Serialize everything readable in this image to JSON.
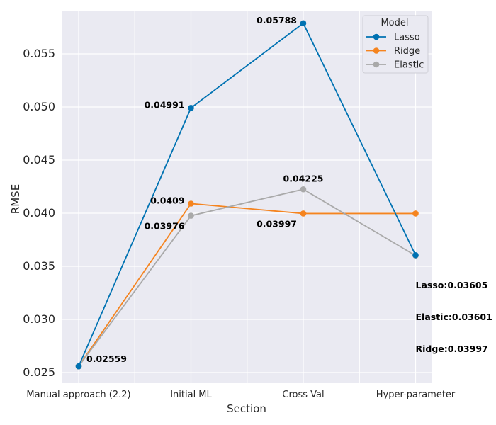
{
  "chart_data": {
    "type": "line",
    "title": "",
    "xlabel": "Section",
    "ylabel": "RMSE",
    "categories": [
      "Manual approach (2.2)",
      "Initial ML",
      "Cross Val",
      "Hyper-parameter"
    ],
    "ylim": [
      0.024,
      0.059
    ],
    "yticks": [
      0.025,
      0.03,
      0.035,
      0.04,
      0.045,
      0.05,
      0.055
    ],
    "ytick_labels": [
      "0.025",
      "0.030",
      "0.035",
      "0.040",
      "0.045",
      "0.050",
      "0.055"
    ],
    "grid": true,
    "legend": {
      "title": "Model",
      "placement": "top-right"
    },
    "series": [
      {
        "name": "Lasso",
        "color": "#0072B2",
        "values": [
          0.02559,
          0.04991,
          0.05788,
          0.03605
        ]
      },
      {
        "name": "Ridge",
        "color": "#F5841F",
        "values": [
          0.02559,
          0.0409,
          0.03997,
          0.03997
        ]
      },
      {
        "name": "Elastic",
        "color": "#A9A9A9",
        "values": [
          0.02559,
          0.03976,
          0.04225,
          0.03601
        ]
      }
    ],
    "annotations": [
      {
        "text": "0.02559",
        "x": "Manual approach (2.2)",
        "y": 0.02559,
        "position": "right"
      },
      {
        "text": "0.04991",
        "x": "Initial ML",
        "y": 0.04991,
        "position": "left"
      },
      {
        "text": "0.0409",
        "x": "Initial ML",
        "y": 0.0409,
        "position": "left"
      },
      {
        "text": "0.03976",
        "x": "Initial ML",
        "y": 0.03976,
        "position": "below-left"
      },
      {
        "text": "0.05788",
        "x": "Cross Val",
        "y": 0.05788,
        "position": "left"
      },
      {
        "text": "0.04225",
        "x": "Cross Val",
        "y": 0.04225,
        "position": "above-left"
      },
      {
        "text": "0.03997",
        "x": "Cross Val",
        "y": 0.03997,
        "position": "below-left"
      },
      {
        "text": "Lasso:0.03605",
        "x": "Hyper-parameter",
        "y": 0.0332,
        "position": "right"
      },
      {
        "text": "Elastic:0.03601",
        "x": "Hyper-parameter",
        "y": 0.0302,
        "position": "right"
      },
      {
        "text": "Ridge:0.03997",
        "x": "Hyper-parameter",
        "y": 0.0272,
        "position": "right"
      }
    ]
  }
}
